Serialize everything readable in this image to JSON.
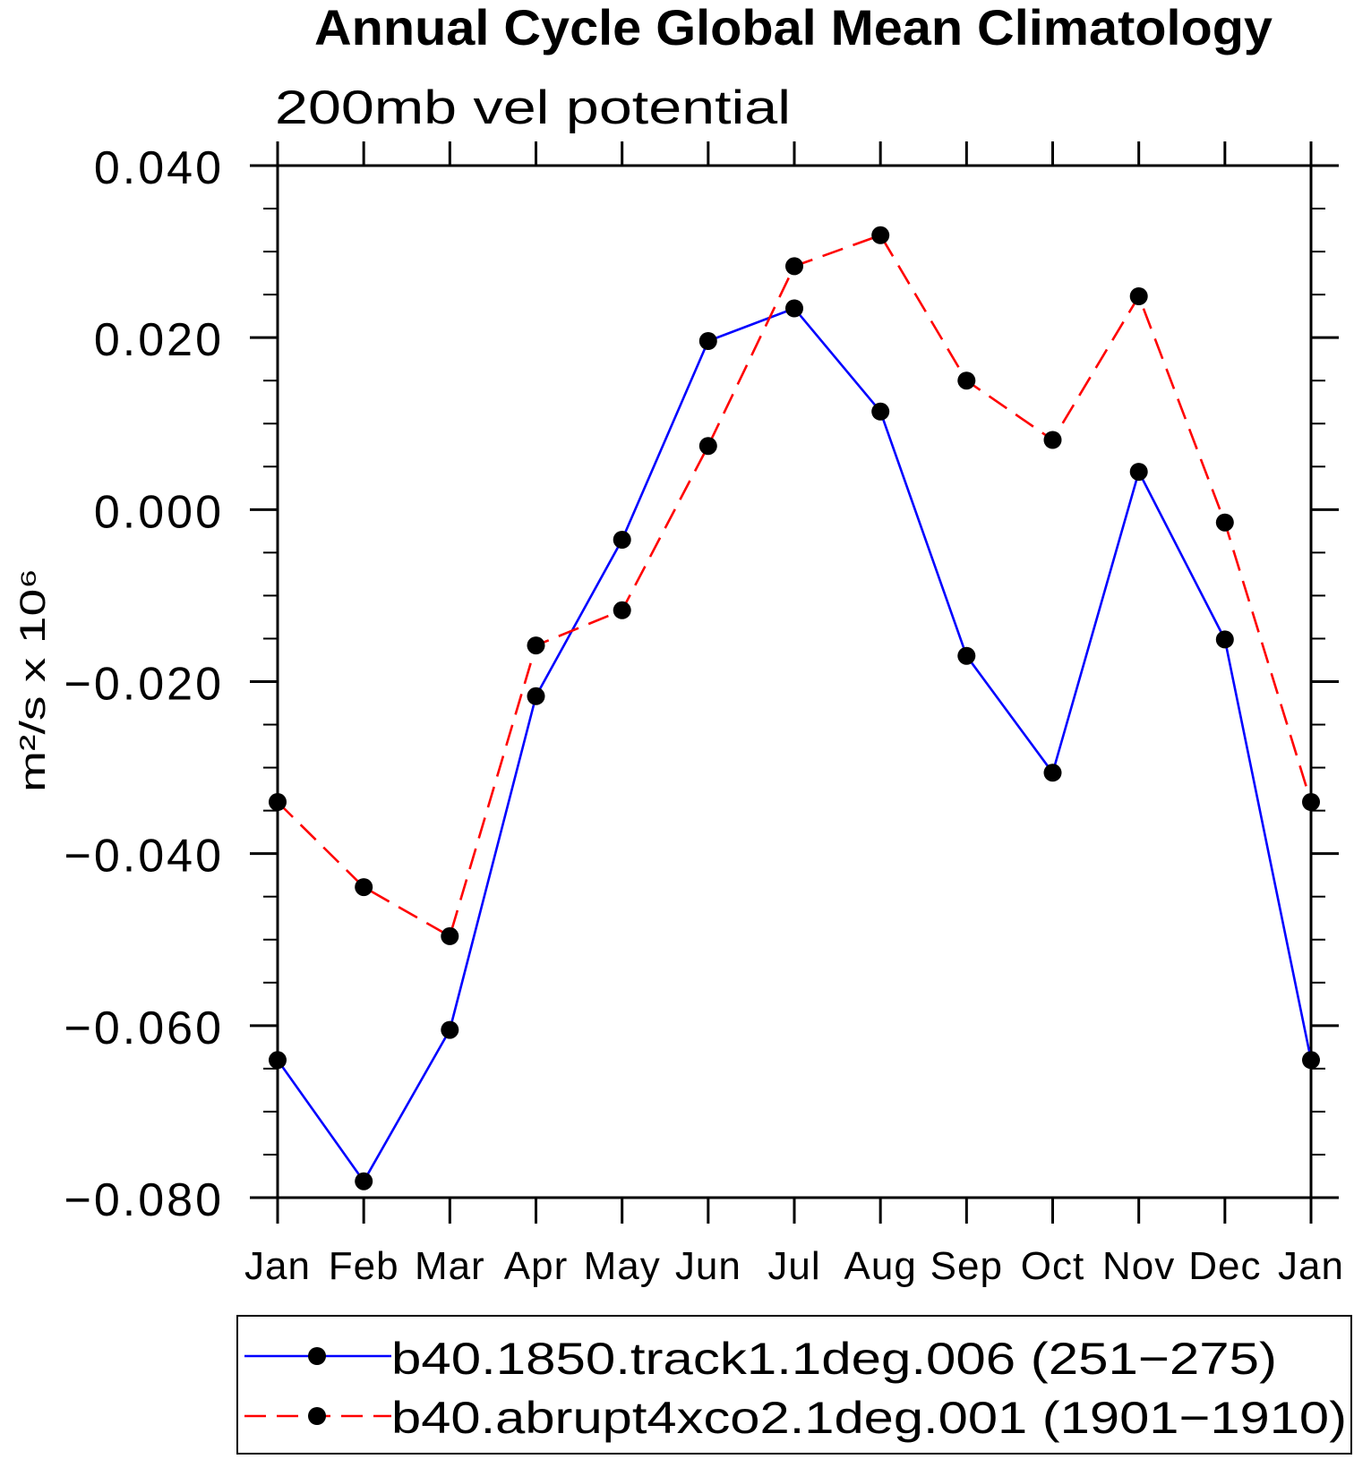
{
  "chart_data": {
    "type": "line",
    "title": "Annual Cycle Global Mean Climatology",
    "subtitle": "200mb vel potential",
    "ylabel": "m²/s x 10⁶",
    "categories": [
      "Jan",
      "Feb",
      "Mar",
      "Apr",
      "May",
      "Jun",
      "Jul",
      "Aug",
      "Sep",
      "Oct",
      "Nov",
      "Dec",
      "Jan"
    ],
    "ylim": [
      -0.08,
      0.04
    ],
    "yticks": [
      -0.08,
      -0.06,
      -0.04,
      -0.02,
      0.0,
      0.02,
      0.04
    ],
    "ytick_labels": [
      "−0.080",
      "−0.060",
      "−0.040",
      "−0.020",
      "0.000",
      "0.020",
      "0.040"
    ],
    "grid": false,
    "series": [
      {
        "name": "b40.1850.track1.1deg.006 (251−275)",
        "color": "#0000ff",
        "marker_color": "#000000",
        "dashed": false,
        "values": [
          -0.064,
          -0.0781,
          -0.0605,
          -0.0217,
          -0.0035,
          0.0196,
          0.0234,
          0.0114,
          -0.017,
          -0.0306,
          0.0044,
          -0.0151,
          -0.064
        ]
      },
      {
        "name": "b40.abrupt4xco2.1deg.001 (1901−1910)",
        "color": "#ff0000",
        "marker_color": "#000000",
        "dashed": true,
        "values": [
          -0.034,
          -0.0439,
          -0.0496,
          -0.0158,
          -0.0117,
          0.0074,
          0.0283,
          0.0319,
          0.015,
          0.0081,
          0.0248,
          -0.0015,
          -0.034
        ]
      }
    ]
  }
}
